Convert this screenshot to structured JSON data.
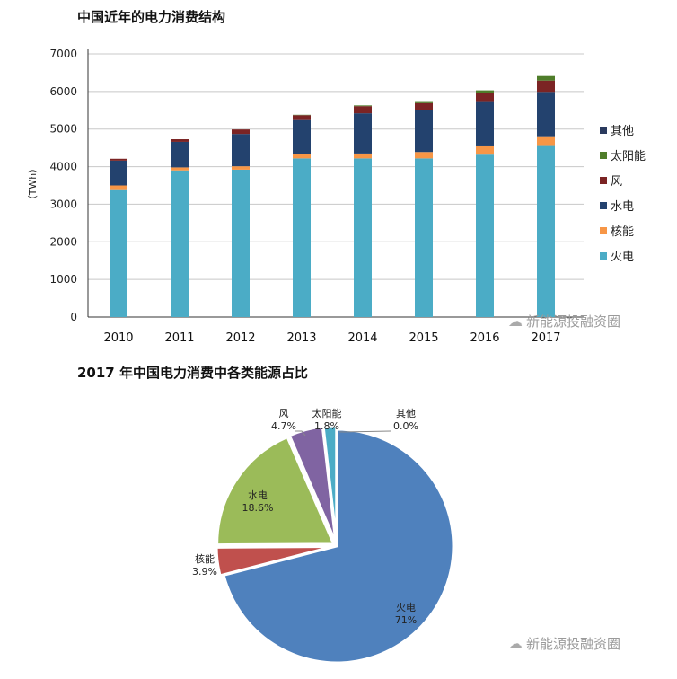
{
  "watermark": "新能源投融资圈",
  "chart_data": [
    {
      "type": "bar",
      "stacked": true,
      "title": "中国近年的电力消费结构",
      "ylabel": "（TWh）",
      "xlabel": "",
      "ylim": [
        0,
        7000
      ],
      "yticks": [
        0,
        1000,
        2000,
        3000,
        4000,
        5000,
        6000,
        7000
      ],
      "grid": true,
      "legend_position": "right",
      "categories": [
        "2010",
        "2011",
        "2012",
        "2013",
        "2014",
        "2015",
        "2016",
        "2017"
      ],
      "series": [
        {
          "name": "火电",
          "color": "#4bacc6",
          "values": [
            3400,
            3900,
            3920,
            4220,
            4220,
            4220,
            4320,
            4550
          ]
        },
        {
          "name": "核能",
          "color": "#f79646",
          "values": [
            100,
            80,
            90,
            110,
            130,
            170,
            220,
            260
          ]
        },
        {
          "name": "水电",
          "color": "#23426e",
          "values": [
            660,
            680,
            860,
            910,
            1070,
            1120,
            1180,
            1180
          ]
        },
        {
          "name": "风",
          "color": "#7b2424",
          "values": [
            50,
            70,
            120,
            130,
            190,
            180,
            230,
            300
          ]
        },
        {
          "name": "太阳能",
          "color": "#4f7d2a",
          "values": [
            0,
            0,
            0,
            10,
            20,
            30,
            80,
            120
          ]
        },
        {
          "name": "其他",
          "color": "#2a3a5e",
          "values": [
            0,
            0,
            0,
            0,
            0,
            0,
            0,
            0
          ]
        }
      ]
    },
    {
      "type": "pie",
      "title": "2017 年中国电力消费中各类能源占比",
      "slices": [
        {
          "label": "火电",
          "value": 71,
          "text": "71%",
          "color": "#4f81bd"
        },
        {
          "label": "核能",
          "value": 3.9,
          "text": "3.9%",
          "color": "#c0504d"
        },
        {
          "label": "水电",
          "value": 18.6,
          "text": "18.6%",
          "color": "#9bbb59"
        },
        {
          "label": "风",
          "value": 4.7,
          "text": "4.7%",
          "color": "#8064a2"
        },
        {
          "label": "太阳能",
          "value": 1.8,
          "text": "1.8%",
          "color": "#4bacc6"
        },
        {
          "label": "其他",
          "value": 0.0,
          "text": "0.0%",
          "color": "#f79646"
        }
      ]
    }
  ]
}
